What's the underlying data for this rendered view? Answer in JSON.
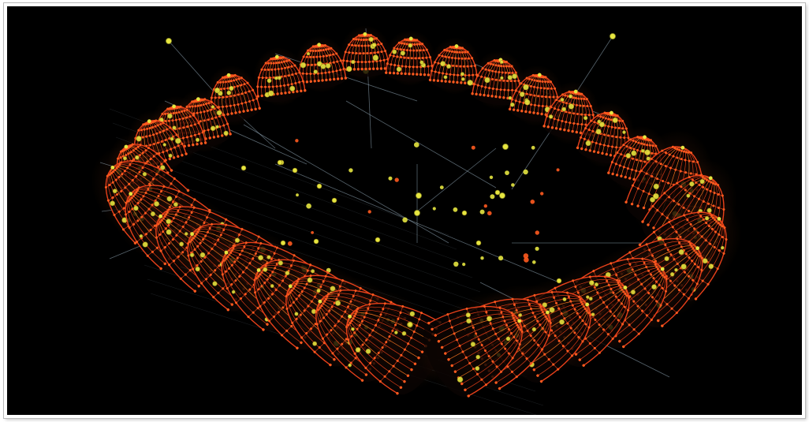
{
  "scene": {
    "background_color": "#000000",
    "mesh_color": "#e8401a",
    "mesh_highlight_color": "#ff7a22",
    "node_color": "#ff5a1f",
    "joint_color": "#e6e640",
    "cable_color": "#9fb7c6"
  }
}
